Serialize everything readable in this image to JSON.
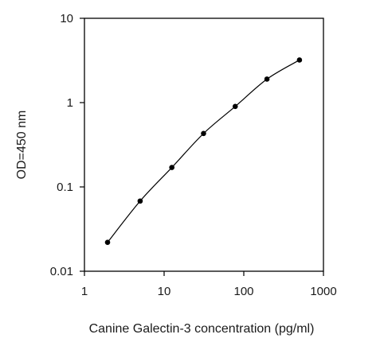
{
  "chart_data": {
    "type": "scatter",
    "xscale": "log",
    "yscale": "log",
    "xlim": [
      1,
      1000
    ],
    "ylim": [
      0.01,
      10
    ],
    "xlabel": "Canine Galectin-3 concentration (pg/ml)",
    "ylabel": "OD=450 nm",
    "x_ticks": [
      "1",
      "10",
      "100",
      "1000"
    ],
    "y_ticks": [
      "10",
      "1",
      "0.1",
      "0.01"
    ],
    "grid": false,
    "legend": "none",
    "series": [
      {
        "marker": "circle",
        "line": "smooth",
        "color": "#000000",
        "x": [
          1.95,
          5.0,
          12.5,
          31.25,
          78.1,
          195.3,
          500
        ],
        "y": [
          0.022,
          0.068,
          0.17,
          0.43,
          0.9,
          1.9,
          3.2
        ]
      }
    ]
  }
}
